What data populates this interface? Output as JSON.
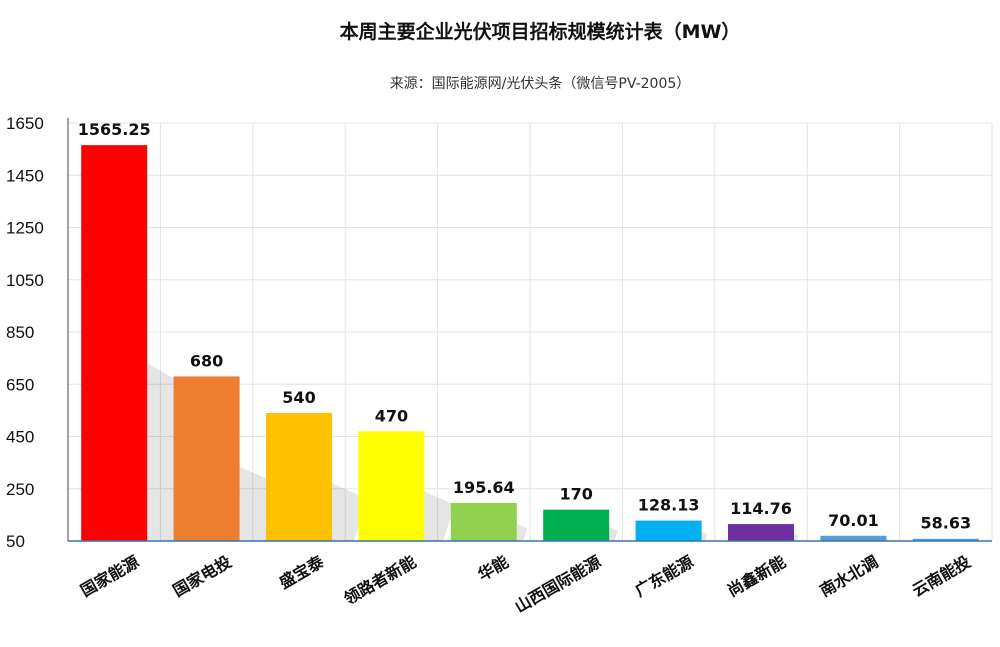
{
  "chart_data": {
    "type": "bar",
    "title": "本周主要企业光伏项目招标规模统计表（MW）",
    "subtitle": "来源：国际能源网/光伏头条（微信号PV-2005）",
    "xlabel": "",
    "ylabel": "",
    "ylim": [
      50,
      1650
    ],
    "yticks": [
      50,
      250,
      450,
      650,
      850,
      1050,
      1250,
      1450,
      1650
    ],
    "grid": true,
    "legend": "none",
    "categories": [
      "国家能源",
      "国家电投",
      "盛宝泰",
      "领路者新能",
      "华能",
      "山西国际能源",
      "广东能源",
      "尚鑫新能",
      "南水北调",
      "云南能投"
    ],
    "values": [
      1565.25,
      680,
      540,
      470,
      195.64,
      170,
      128.13,
      114.76,
      70.01,
      58.63
    ],
    "data_labels": [
      "1565.25",
      "680",
      "540",
      "470",
      "195.64",
      "170",
      "128.13",
      "114.76",
      "70.01",
      "58.63"
    ],
    "colors": [
      "#ff0000",
      "#ed7d31",
      "#ffc000",
      "#ffff00",
      "#92d050",
      "#00b050",
      "#00b0f0",
      "#7030a0",
      "#5b9bd5",
      "#5b9bd5"
    ]
  }
}
